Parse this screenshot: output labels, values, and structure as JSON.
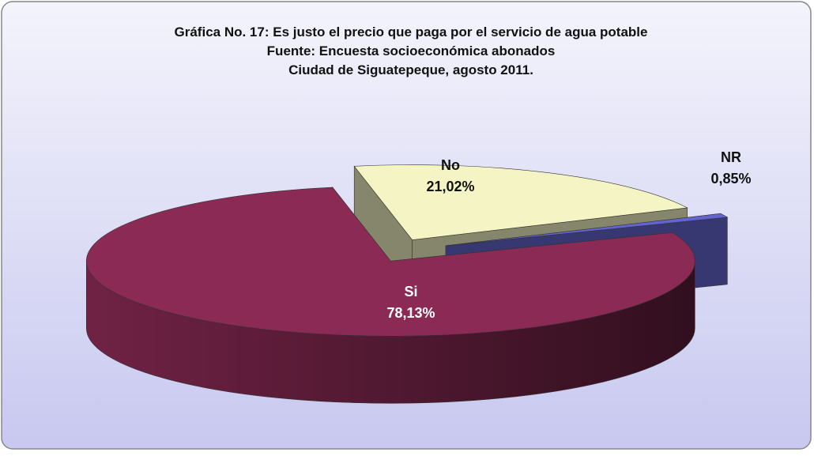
{
  "chart_data": {
    "type": "pie",
    "title": "Gráfica No. 17: Es justo el precio que paga por el servicio de agua potable",
    "subtitle": [
      "Fuente: Encuesta socioeconómica abonados",
      "Ciudad de Siguatepeque, agosto 2011."
    ],
    "categories": [
      "Si",
      "No",
      "NR"
    ],
    "values": [
      78.13,
      21.02,
      0.85
    ],
    "value_labels": [
      "78,13%",
      "21,02%",
      "0,85%"
    ],
    "colors": [
      "#8c2a56",
      "#f4f4c4",
      "#6464d0"
    ]
  }
}
